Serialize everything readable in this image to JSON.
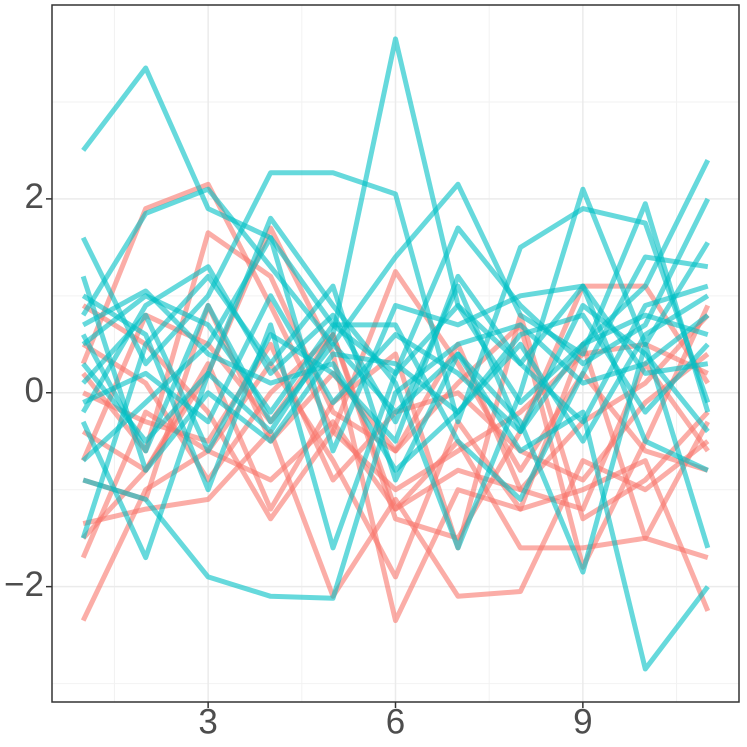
{
  "chart_data": {
    "type": "line",
    "x": [
      1,
      2,
      3,
      4,
      5,
      6,
      7,
      8,
      9,
      10,
      11
    ],
    "xlim": [
      0.5,
      11.5
    ],
    "xticks": [
      3,
      6,
      9
    ],
    "ylim": [
      -3.19,
      4.0
    ],
    "yticks": [
      {
        "value": -2,
        "label": "−2"
      },
      0,
      2
    ],
    "grid": true,
    "line_width": 5,
    "opacity": 0.6,
    "series": [
      {
        "color": "#F8766D",
        "values": [
          -2.35,
          -1.0,
          -0.6,
          -0.9,
          -0.3,
          -1.2,
          -0.5,
          -1.6,
          -1.6,
          -1.5,
          -1.7
        ]
      },
      {
        "color": "#F8766D",
        "values": [
          0.3,
          1.9,
          2.15,
          0.9,
          -0.4,
          -1.0,
          -0.6,
          -0.2,
          0.4,
          0.5,
          0.2
        ]
      },
      {
        "color": "#F8766D",
        "values": [
          -1.5,
          -0.8,
          0.2,
          1.7,
          0.4,
          -2.35,
          -1.0,
          -1.2,
          -1.0,
          -0.7,
          -2.25
        ]
      },
      {
        "color": "#F8766D",
        "values": [
          0.9,
          0.5,
          -0.2,
          -1.3,
          -0.4,
          1.25,
          0.3,
          -0.8,
          0.2,
          -0.6,
          -0.8
        ]
      },
      {
        "color": "#F8766D",
        "values": [
          -1.35,
          -1.2,
          -1.1,
          -0.4,
          -2.1,
          -1.1,
          -2.1,
          -2.05,
          -0.7,
          -1.0,
          -0.5
        ]
      },
      {
        "color": "#F8766D",
        "values": [
          0.2,
          -0.6,
          1.65,
          1.2,
          -0.2,
          -0.6,
          0.1,
          0.7,
          -1.8,
          -0.5,
          0.9
        ]
      },
      {
        "color": "#F8766D",
        "values": [
          -0.7,
          0.8,
          0.5,
          -0.3,
          0.6,
          -1.3,
          -1.5,
          -0.4,
          1.1,
          1.1,
          0.1
        ]
      },
      {
        "color": "#F8766D",
        "values": [
          -1.7,
          -0.2,
          -0.6,
          0.3,
          -0.7,
          -1.9,
          -0.3,
          -1.2,
          0.5,
          -1.5,
          -0.3
        ]
      },
      {
        "color": "#F8766D",
        "values": [
          0.5,
          0.1,
          -0.9,
          0.0,
          0.6,
          -1.2,
          -0.8,
          -1.0,
          -0.3,
          0.1,
          0.8
        ]
      },
      {
        "color": "#F8766D",
        "values": [
          -0.4,
          -0.8,
          0.3,
          -1.2,
          -0.1,
          0.4,
          -1.6,
          0.8,
          -1.3,
          -0.9,
          -0.2
        ]
      },
      {
        "color": "#F8766D",
        "values": [
          0.0,
          -0.3,
          -0.5,
          0.5,
          -0.9,
          -0.2,
          0.0,
          -0.6,
          -0.9,
          -0.1,
          0.4
        ]
      },
      {
        "color": "#F8766D",
        "values": [
          -0.9,
          -1.1,
          0.9,
          -0.5,
          0.2,
          -0.6,
          0.5,
          -1.0,
          -1.2,
          0.3,
          -0.6
        ]
      },
      {
        "color": "#00BFC4",
        "values": [
          2.5,
          3.35,
          1.9,
          1.6,
          0.7,
          0.2,
          0.9,
          -0.1,
          0.5,
          0.8,
          0.6
        ]
      },
      {
        "color": "#00BFC4",
        "values": [
          0.3,
          -0.5,
          0.2,
          -0.4,
          0.6,
          3.65,
          0.9,
          0.3,
          1.1,
          0.2,
          0.3
        ]
      },
      {
        "color": "#00BFC4",
        "values": [
          0.6,
          -0.6,
          0.9,
          -0.3,
          0.5,
          -0.2,
          0.4,
          -0.6,
          -0.2,
          -2.85,
          -2.0
        ]
      },
      {
        "color": "#00BFC4",
        "values": [
          -0.9,
          -1.1,
          -1.9,
          -2.1,
          -2.12,
          0.0,
          0.5,
          0.7,
          0.1,
          0.3,
          0.8
        ]
      },
      {
        "color": "#00BFC4",
        "values": [
          -0.2,
          0.9,
          1.3,
          0.2,
          0.8,
          -0.3,
          1.1,
          -0.4,
          0.5,
          1.1,
          2.4
        ]
      },
      {
        "color": "#00BFC4",
        "values": [
          1.6,
          0.3,
          1.0,
          2.27,
          2.27,
          2.05,
          -0.3,
          1.5,
          1.9,
          1.75,
          -0.1
        ]
      },
      {
        "color": "#00BFC4",
        "values": [
          0.8,
          1.85,
          2.1,
          1.3,
          0.5,
          1.4,
          2.15,
          0.8,
          0.4,
          1.95,
          -0.2
        ]
      },
      {
        "color": "#00BFC4",
        "values": [
          -0.3,
          -1.7,
          0.2,
          1.8,
          0.9,
          0.1,
          -1.6,
          0.0,
          2.1,
          0.5,
          1.55
        ]
      },
      {
        "color": "#00BFC4",
        "values": [
          1.0,
          0.6,
          -1.0,
          0.7,
          -1.6,
          0.2,
          1.7,
          0.9,
          0.3,
          0.7,
          2.0
        ]
      },
      {
        "color": "#00BFC4",
        "values": [
          -1.5,
          0.5,
          1.2,
          0.3,
          1.1,
          -0.9,
          0.4,
          -0.3,
          -1.85,
          0.5,
          -1.6
        ]
      },
      {
        "color": "#00BFC4",
        "values": [
          0.5,
          1.0,
          0.7,
          -0.2,
          0.7,
          0.7,
          -0.5,
          -1.1,
          0.2,
          1.4,
          1.3
        ]
      },
      {
        "color": "#00BFC4",
        "values": [
          -0.7,
          -0.1,
          0.5,
          1.6,
          -0.6,
          0.9,
          0.7,
          1.0,
          1.1,
          -0.5,
          -0.8
        ]
      },
      {
        "color": "#00BFC4",
        "values": [
          0.1,
          0.8,
          -0.6,
          0.6,
          0.2,
          -0.5,
          1.2,
          0.3,
          -0.3,
          0.9,
          1.1
        ]
      },
      {
        "color": "#00BFC4",
        "values": [
          1.2,
          -0.8,
          0.0,
          -0.5,
          0.4,
          0.3,
          -0.2,
          0.6,
          0.8,
          -0.2,
          0.5
        ]
      },
      {
        "color": "#00BFC4",
        "values": [
          -0.1,
          0.2,
          -0.3,
          1.0,
          -0.1,
          0.6,
          0.2,
          -0.4,
          0.9,
          0.4,
          -0.4
        ]
      },
      {
        "color": "#00BFC4",
        "values": [
          0.7,
          1.05,
          0.4,
          0.1,
          0.3,
          -0.8,
          -0.2,
          0.5,
          -0.5,
          0.6,
          1.0
        ]
      }
    ]
  }
}
